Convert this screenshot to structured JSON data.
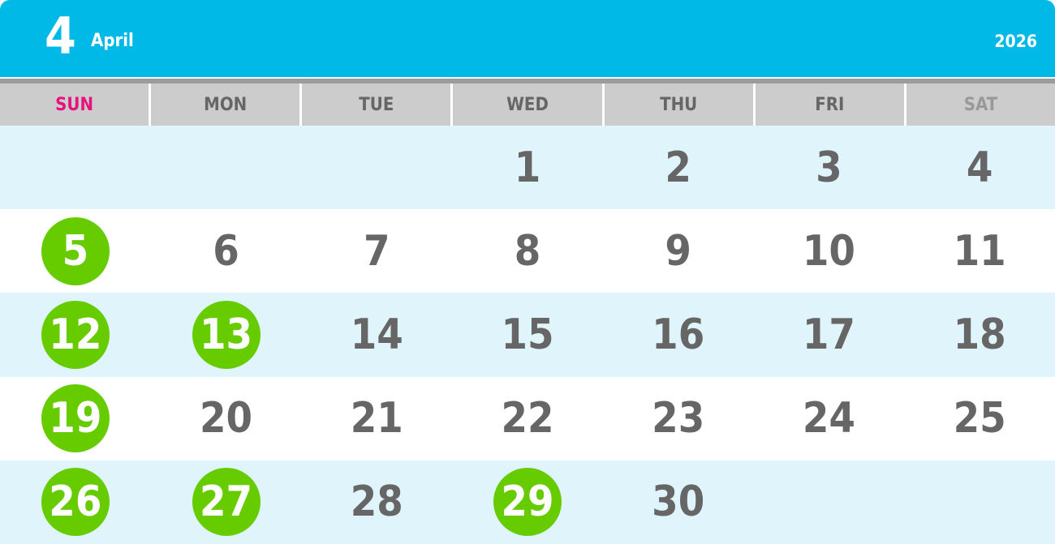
{
  "header": {
    "month_number": "4",
    "month_name": "April",
    "year": "2026"
  },
  "colors": {
    "header": "#00b9e6",
    "sunday": "#e6127d",
    "saturday": "#999999",
    "weekday": "#666666",
    "holiday_circle": "#66cc00",
    "alt_row": "#e0f4fb"
  },
  "weekdays": [
    "SUN",
    "MON",
    "TUE",
    "WED",
    "THU",
    "FRI",
    "SAT"
  ],
  "weeks": [
    [
      "",
      "",
      "",
      "1",
      "2",
      "3",
      "4"
    ],
    [
      "5",
      "6",
      "7",
      "8",
      "9",
      "10",
      "11"
    ],
    [
      "12",
      "13",
      "14",
      "15",
      "16",
      "17",
      "18"
    ],
    [
      "19",
      "20",
      "21",
      "22",
      "23",
      "24",
      "25"
    ],
    [
      "26",
      "27",
      "28",
      "29",
      "30",
      "",
      ""
    ]
  ],
  "highlighted_days": [
    "5",
    "12",
    "13",
    "19",
    "26",
    "27",
    "29"
  ]
}
